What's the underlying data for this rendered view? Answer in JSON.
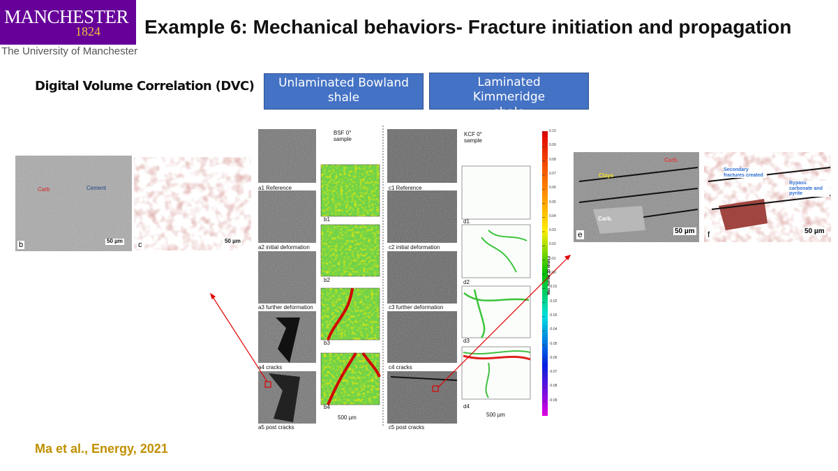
{
  "header": {
    "logo": {
      "name": "MANCHESTER",
      "year": "1824",
      "university": "The University of Manchester"
    },
    "title": "Example 6: Mechanical behaviors- Fracture initiation and propagation"
  },
  "section_label": "Digital Volume Correlation (DVC)",
  "sample_boxes": [
    "Unlaminated Bowland shale",
    "Laminated Kimmeridge shale"
  ],
  "figure_left": {
    "annotations": [
      "Carb",
      "Cement"
    ],
    "scale_bars": [
      "50 µm",
      "50 µm"
    ],
    "panel_labels": [
      "b",
      "c"
    ]
  },
  "figure_center": {
    "bsf_title": "BSF 0° sample",
    "kcf_title": "KCF 0° sample",
    "a_labels": [
      "a1 Reference",
      "a2 initial deformation",
      "a3 further deformation",
      "a4 cracks",
      "a5 post cracks"
    ],
    "b_labels": [
      "b1",
      "b2",
      "b3",
      "b4"
    ],
    "c_labels": [
      "c1 Reference",
      "c2 initial deformation",
      "c3 further deformation",
      "c4 cracks",
      "c5 post cracks"
    ],
    "d_labels": [
      "d1",
      "d2",
      "d3",
      "d4"
    ],
    "scale_bars": [
      "500 µm",
      "500 µm"
    ],
    "colorbar": {
      "label": "Max. normal 3D strain ε",
      "ticks": [
        "0.10",
        "0.09",
        "0.08",
        "0.07",
        "0.06",
        "0.05",
        "0.04",
        "0.03",
        "0.02",
        "0.01",
        "0.00",
        "-0.01",
        "-0.02",
        "-0.03",
        "-0.04",
        "-0.05",
        "-0.06",
        "-0.07",
        "-0.08",
        "-0.09"
      ]
    }
  },
  "figure_right": {
    "e_annotations": [
      "Clays",
      "Carb.",
      "Carb."
    ],
    "f_annotations": [
      "Secondary fractures created",
      "Bypass carbonate and pyrite"
    ],
    "scale_bars": [
      "50 µm",
      "50 µm"
    ],
    "panel_labels": [
      "e",
      "f"
    ]
  },
  "citation": "Ma et al., Energy, 2021"
}
